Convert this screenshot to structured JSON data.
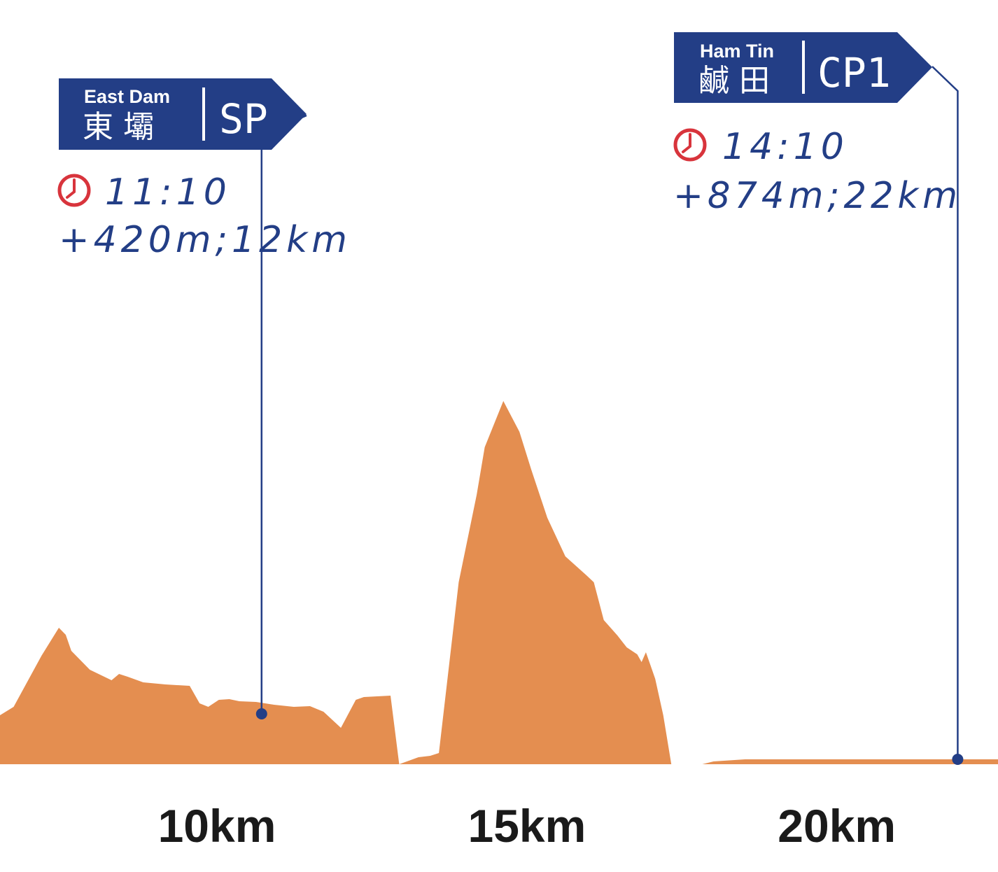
{
  "colors": {
    "profile": "#E48E50",
    "navy": "#233E86",
    "clock": "#D8343C",
    "tick_text": "#1A1A1A",
    "background": "#FFFFFF"
  },
  "chart_data": {
    "type": "area",
    "title": "",
    "xlabel": "",
    "ylabel": "",
    "xlim": [
      6.5,
      22.6
    ],
    "ylim": [
      0,
      580
    ],
    "x_ticks": [
      {
        "value": 10,
        "label": "10km"
      },
      {
        "value": 15,
        "label": "15km"
      },
      {
        "value": 20,
        "label": "20km"
      }
    ],
    "series": [
      {
        "x": [
          6.5,
          6.72,
          7.17,
          7.45,
          7.56,
          7.65,
          7.95,
          8.3,
          8.42,
          8.56,
          8.81,
          9.17,
          9.56,
          9.72,
          9.86,
          10.03,
          10.2,
          10.36,
          10.63,
          10.92,
          11.24,
          11.5,
          11.72,
          12.0,
          12.24,
          12.37,
          12.8,
          12.94,
          13.25,
          13.44,
          13.58,
          13.9,
          14.19,
          14.32,
          14.62,
          14.88,
          15.07,
          15.33,
          15.62,
          15.96,
          16.08,
          16.24,
          16.46,
          16.61,
          16.78,
          16.85,
          16.92,
          16.98,
          17.07,
          17.2,
          17.33,
          17.55,
          17.64,
          17.83,
          18.01,
          18.52,
          18.66,
          18.97,
          19.0,
          19.17,
          19.34,
          19.52,
          19.71,
          19.87,
          20.0,
          20.12,
          20.26,
          20.4,
          20.53,
          20.61,
          20.75,
          20.83,
          21.06,
          21.38,
          21.58,
          21.68,
          21.75,
          21.84,
          22.0,
          22.23,
          22.38,
          22.6
        ],
        "y": [
          70,
          82,
          155,
          195,
          185,
          162,
          135,
          120,
          129,
          125,
          117,
          114,
          112,
          87,
          82,
          92,
          93,
          90,
          89,
          85,
          82,
          83,
          75,
          52,
          92,
          96,
          98,
          0,
          10,
          12,
          16,
          260,
          385,
          453,
          519,
          475,
          421,
          352,
          297,
          270,
          260,
          206,
          184,
          167,
          157,
          146,
          160,
          145,
          122,
          70,
          0,
          0,
          0,
          0,
          4,
          7,
          7,
          7,
          7,
          7,
          7,
          7,
          7,
          7,
          7,
          7,
          7,
          7,
          7,
          7,
          7,
          7,
          7,
          7,
          7,
          7,
          7,
          7,
          7,
          7,
          7,
          7
        ]
      }
    ],
    "markers": [
      {
        "x": 10.72,
        "y": 72
      },
      {
        "x": 21.95,
        "y": 7
      }
    ]
  },
  "checkpoints": [
    {
      "en_name": "East Dam",
      "zh_name": "東 壩",
      "code": "SP",
      "time": "11:10",
      "gain_distance": "+420m;12km"
    },
    {
      "en_name": "Ham Tin",
      "zh_name": "鹹 田",
      "code": "CP1",
      "time": "14:10",
      "gain_distance": "+874m;22km"
    }
  ]
}
